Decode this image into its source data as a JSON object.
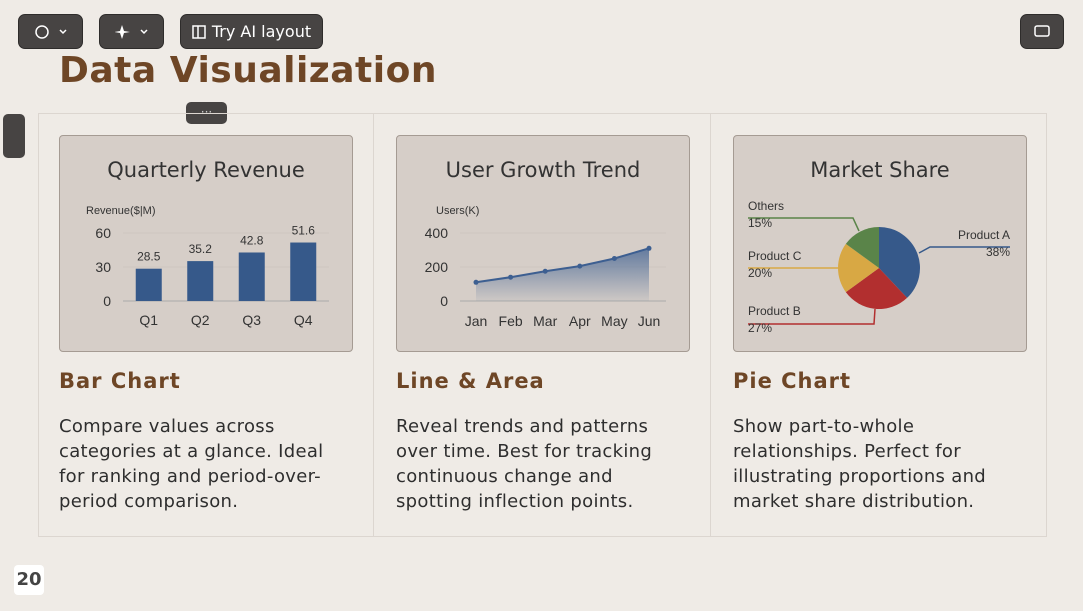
{
  "toolbar": {
    "ai_button": "Try AI layout"
  },
  "title": "Data Visualization",
  "cards": [
    {
      "chart_data": {
        "type": "bar",
        "title": "Quarterly Revenue",
        "y_label": "Revenue($|M)",
        "categories": [
          "Q1",
          "Q2",
          "Q3",
          "Q4"
        ],
        "values": [
          28.5,
          35.2,
          42.8,
          51.6
        ],
        "color": "#36598a",
        "ylim": [
          0,
          60
        ],
        "yticks": [
          0,
          30,
          60
        ],
        "grid": true
      },
      "heading": "Bar Chart",
      "description": "Compare values across categories at a glance. Ideal for ranking and period-over-period comparison."
    },
    {
      "chart_data": {
        "type": "line",
        "title": "User Growth Trend",
        "y_label": "Users(K)",
        "categories": [
          "Jan",
          "Feb",
          "Mar",
          "Apr",
          "May",
          "Jun"
        ],
        "values": [
          110,
          140,
          175,
          205,
          250,
          310
        ],
        "color": "#3d5f91",
        "ylim": [
          0,
          400
        ],
        "yticks": [
          0,
          200,
          400
        ],
        "grid": true
      },
      "heading": "Line & Area",
      "description": "Reveal trends and patterns over time. Best for tracking continuous change and spotting inflection points."
    },
    {
      "chart_data": {
        "type": "pie",
        "title": "Market Share",
        "categories": [
          "Product A",
          "Product B",
          "Product C",
          "Others"
        ],
        "values": [
          38,
          27,
          20,
          15
        ],
        "value_labels": [
          "38%",
          "27%",
          "20%",
          "15%"
        ],
        "colors": [
          "#36598a",
          "#b22f2f",
          "#d8a844",
          "#5a8449"
        ]
      },
      "heading": "Pie Chart",
      "description": "Show part-to-whole relationships. Perfect for illustrating proportions and market share distribution."
    }
  ],
  "page_number": 20
}
